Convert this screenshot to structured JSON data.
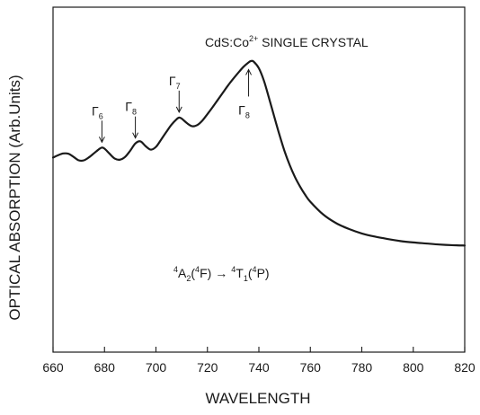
{
  "chart_data": {
    "type": "line",
    "title": "CdS:Co",
    "title_sup": "2+",
    "title_rest": "  SINGLE CRYSTAL",
    "xlabel": "WAVELENGTH",
    "ylabel": "OPTICAL ABSORPTION  (Arb.Units)",
    "xlim": [
      660,
      820
    ],
    "ylim": [
      0,
      1
    ],
    "x_ticks": [
      660,
      680,
      700,
      720,
      740,
      760,
      780,
      800,
      820
    ],
    "y_ticks": [],
    "grid": false,
    "legend": "none",
    "series": [
      {
        "x": [
          660,
          662,
          664,
          666,
          668,
          670,
          672,
          674,
          676,
          678,
          679,
          680,
          682,
          684,
          686,
          688,
          690,
          692,
          694,
          696,
          698,
          700,
          702,
          704,
          706,
          708,
          709,
          710,
          712,
          714,
          716,
          718,
          720,
          722,
          724,
          726,
          728,
          730,
          732,
          734,
          736,
          737,
          738,
          740,
          742,
          744,
          746,
          748,
          750,
          752,
          754,
          756,
          758,
          760,
          765,
          770,
          775,
          780,
          785,
          790,
          795,
          800,
          805,
          810,
          815,
          820
        ],
        "y": [
          0.564,
          0.571,
          0.576,
          0.575,
          0.566,
          0.556,
          0.556,
          0.565,
          0.577,
          0.589,
          0.593,
          0.59,
          0.575,
          0.561,
          0.558,
          0.566,
          0.584,
          0.605,
          0.611,
          0.597,
          0.587,
          0.595,
          0.616,
          0.638,
          0.659,
          0.675,
          0.68,
          0.677,
          0.664,
          0.655,
          0.658,
          0.671,
          0.69,
          0.71,
          0.731,
          0.752,
          0.773,
          0.792,
          0.81,
          0.827,
          0.84,
          0.844,
          0.842,
          0.823,
          0.786,
          0.735,
          0.682,
          0.63,
          0.582,
          0.542,
          0.508,
          0.48,
          0.456,
          0.436,
          0.399,
          0.374,
          0.357,
          0.344,
          0.335,
          0.328,
          0.322,
          0.318,
          0.315,
          0.312,
          0.31,
          0.309
        ]
      }
    ],
    "annotations": [
      {
        "label": "Γ",
        "sub": "6",
        "x": 679,
        "side": "above"
      },
      {
        "label": "Γ",
        "sub": "8",
        "x": 692,
        "side": "above"
      },
      {
        "label": "Γ",
        "sub": "7",
        "x": 709,
        "side": "above"
      },
      {
        "label": "Γ",
        "sub": "8",
        "x": 736,
        "side": "below"
      }
    ],
    "transition": {
      "sup1": "4",
      "term1": "A",
      "sub1": "2",
      "open1": "(",
      "sup1b": "4",
      "state1": "F)",
      "arrow": "→",
      "sup2": "4",
      "term2": "T",
      "sub2": "1",
      "open2": "(",
      "sup2b": "4",
      "state2": "P)"
    }
  }
}
